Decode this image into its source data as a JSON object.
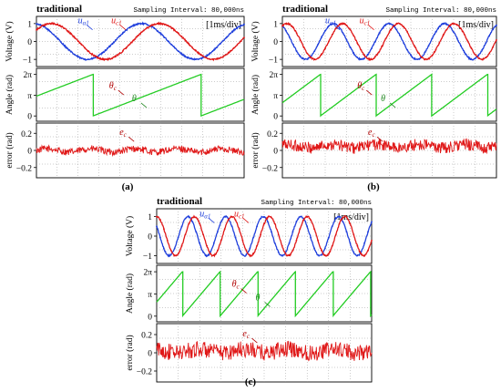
{
  "figure": {
    "labels": {
      "a": "(a)",
      "b": "(b)",
      "c": "(c)"
    },
    "colors": {
      "u_alpha": "#1f3fdc",
      "u_c": "#e01818",
      "angle": "#22cc22",
      "error": "#e01818",
      "annot_red": "#b00000",
      "annot_green": "#228822"
    }
  },
  "chart_data": [
    {
      "id": "a",
      "type": "line",
      "header": {
        "title": "traditional",
        "sampling": "Sampling Interval:  80,000ns",
        "timebase": "[1ms/div]"
      },
      "divisions_x": 10,
      "panels": [
        {
          "name": "voltage",
          "ylabel": "Voltage (V)",
          "yticks": [
            "1",
            "0",
            "−1"
          ],
          "ytick_values": [
            1,
            0,
            -1
          ],
          "ylim": [
            -1.4,
            1.4
          ],
          "series": [
            {
              "name": "uα1",
              "kind": "sine",
              "amplitude": 1,
              "period_div": 5.2,
              "phase_deg": 100
            },
            {
              "name": "uc1",
              "kind": "sine",
              "amplitude": 1,
              "period_div": 5.2,
              "phase_deg": 40
            }
          ],
          "labels": [
            {
              "text": "u",
              "sub": "α1",
              "color": "u_alpha"
            },
            {
              "text": "u",
              "sub": "c1",
              "color": "u_c"
            }
          ]
        },
        {
          "name": "angle",
          "ylabel": "Angle (rad)",
          "yticks": [
            "2π",
            "π",
            "0"
          ],
          "ytick_values": [
            6.283,
            3.1416,
            0
          ],
          "ylim": [
            -0.8,
            7.2
          ],
          "series": [
            {
              "name": "θ",
              "kind": "sawtooth",
              "period_div": 5.2,
              "start_value": 3.0
            }
          ],
          "labels": [
            {
              "text": "θ",
              "sub": "c",
              "color": "annot_red"
            },
            {
              "text": "θ",
              "sub": "",
              "color": "annot_green"
            }
          ]
        },
        {
          "name": "error",
          "ylabel": "error (rad)",
          "yticks": [
            "0.2",
            "0",
            "−0.2"
          ],
          "ytick_values": [
            0.2,
            0,
            -0.2
          ],
          "ylim": [
            -0.32,
            0.32
          ],
          "series": [
            {
              "name": "ec",
              "kind": "noise",
              "amplitude": 0.04,
              "offset": 0.0
            }
          ],
          "labels": [
            {
              "text": "e",
              "sub": "c",
              "color": "annot_red"
            }
          ]
        }
      ]
    },
    {
      "id": "b",
      "type": "line",
      "header": {
        "title": "traditional",
        "sampling": "Sampling Interval:  80,000ns",
        "timebase": "[1ms/div]"
      },
      "divisions_x": 10,
      "panels": [
        {
          "name": "voltage",
          "ylabel": "Voltage (V)",
          "yticks": [
            "1",
            "0",
            "−1"
          ],
          "ytick_values": [
            1,
            0,
            -1
          ],
          "ylim": [
            -1.4,
            1.4
          ],
          "series": [
            {
              "name": "uα1",
              "kind": "sine",
              "amplitude": 1,
              "period_div": 2.6,
              "phase_deg": 120
            },
            {
              "name": "uc1",
              "kind": "sine",
              "amplitude": 1,
              "period_div": 2.6,
              "phase_deg": 60
            }
          ],
          "labels": [
            {
              "text": "u",
              "sub": "α1",
              "color": "u_alpha"
            },
            {
              "text": "u",
              "sub": "c1",
              "color": "u_c"
            }
          ]
        },
        {
          "name": "angle",
          "ylabel": "Angle (rad)",
          "yticks": [
            "2π",
            "π",
            "0"
          ],
          "ytick_values": [
            6.283,
            3.1416,
            0
          ],
          "ylim": [
            -0.8,
            7.2
          ],
          "series": [
            {
              "name": "θ",
              "kind": "sawtooth",
              "period_div": 2.6,
              "start_value": 2.0
            }
          ],
          "labels": [
            {
              "text": "θ",
              "sub": "c",
              "color": "annot_red"
            },
            {
              "text": "θ",
              "sub": "",
              "color": "annot_green"
            }
          ]
        },
        {
          "name": "error",
          "ylabel": "error (rad)",
          "yticks": [
            "0.2",
            "0",
            "−0.2"
          ],
          "ytick_values": [
            0.2,
            0,
            -0.2
          ],
          "ylim": [
            -0.32,
            0.32
          ],
          "series": [
            {
              "name": "ec",
              "kind": "noise",
              "amplitude": 0.07,
              "offset": 0.05
            }
          ],
          "labels": [
            {
              "text": "e",
              "sub": "c",
              "color": "annot_red"
            }
          ]
        }
      ]
    },
    {
      "id": "c",
      "type": "line",
      "header": {
        "title": "traditional",
        "sampling": "Sampling Interval:  80,000ns",
        "timebase": "[1ms/div]"
      },
      "divisions_x": 10,
      "panels": [
        {
          "name": "voltage",
          "ylabel": "Voltage (V)",
          "yticks": [
            "1",
            "0",
            "−1"
          ],
          "ytick_values": [
            1,
            0,
            -1
          ],
          "ylim": [
            -1.4,
            1.4
          ],
          "series": [
            {
              "name": "uα1",
              "kind": "sine",
              "amplitude": 1,
              "period_div": 1.75,
              "phase_deg": 150
            },
            {
              "name": "uc1",
              "kind": "sine",
              "amplitude": 1,
              "period_div": 1.75,
              "phase_deg": 90
            }
          ],
          "labels": [
            {
              "text": "u",
              "sub": "α1",
              "color": "u_alpha"
            },
            {
              "text": "u",
              "sub": "c1",
              "color": "u_c"
            }
          ]
        },
        {
          "name": "angle",
          "ylabel": "Angle (rad)",
          "yticks": [
            "2π",
            "π",
            "0"
          ],
          "ytick_values": [
            6.283,
            3.1416,
            0
          ],
          "ylim": [
            -0.8,
            7.2
          ],
          "series": [
            {
              "name": "θ",
              "kind": "sawtooth",
              "period_div": 1.75,
              "start_value": 2.0
            }
          ],
          "labels": [
            {
              "text": "θ",
              "sub": "c",
              "color": "annot_red"
            },
            {
              "text": "θ",
              "sub": "",
              "color": "annot_green"
            }
          ]
        },
        {
          "name": "error",
          "ylabel": "error (rad)",
          "yticks": [
            "0.2",
            "0",
            "−0.2"
          ],
          "ytick_values": [
            0.2,
            0,
            -0.2
          ],
          "ylim": [
            -0.32,
            0.32
          ],
          "series": [
            {
              "name": "ec",
              "kind": "noise",
              "amplitude": 0.09,
              "offset": 0.02
            }
          ],
          "labels": [
            {
              "text": "e",
              "sub": "c",
              "color": "annot_red"
            }
          ]
        }
      ]
    }
  ]
}
